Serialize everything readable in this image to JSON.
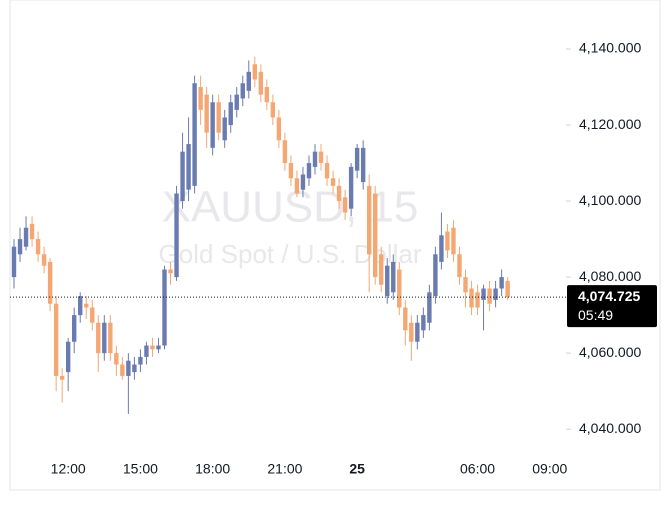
{
  "chart_data": {
    "type": "candlestick",
    "watermark_symbol": "XAUUSD, 15",
    "watermark_name": "Gold Spot / U.S. Dollar",
    "up_color": "#6a7bb0",
    "down_color": "#f4a772",
    "ylim": [
      4033.2,
      4152.9
    ],
    "yticks": [
      {
        "value": 4040,
        "label": "4,040.000"
      },
      {
        "value": 4060,
        "label": "4,060.000"
      },
      {
        "value": 4080,
        "label": "4,080.000"
      },
      {
        "value": 4100,
        "label": "4,100.000"
      },
      {
        "value": 4120,
        "label": "4,120.000"
      },
      {
        "value": 4140,
        "label": "4,140.000"
      }
    ],
    "last_price": {
      "value": 4074.725,
      "label": "4,074.725"
    },
    "countdown": "05:49",
    "categories": [
      null,
      null,
      null,
      null,
      null,
      null,
      null,
      null,
      null,
      "12:00",
      null,
      null,
      null,
      null,
      null,
      null,
      null,
      null,
      null,
      null,
      null,
      "15:00",
      null,
      null,
      null,
      null,
      null,
      null,
      null,
      null,
      null,
      null,
      null,
      "18:00",
      null,
      null,
      null,
      null,
      null,
      null,
      null,
      null,
      null,
      null,
      null,
      "21:00",
      null,
      null,
      null,
      null,
      null,
      null,
      null,
      null,
      null,
      null,
      null,
      "25",
      null,
      null,
      null,
      null,
      null,
      null,
      null,
      null,
      null,
      null,
      null,
      null,
      null,
      null,
      null,
      null,
      null,
      null,
      null,
      "06:00",
      null,
      null,
      null,
      null,
      null,
      null,
      null,
      null,
      null,
      null,
      null,
      "09:00"
    ],
    "open": [
      4080,
      4086,
      4088,
      4094,
      4090,
      4086,
      4084,
      4073,
      4054,
      4055,
      4063,
      4070,
      4073,
      4072,
      4068,
      4060,
      4068,
      4060,
      4057,
      4054,
      4055,
      4057,
      4059,
      4062,
      4061,
      4062,
      4082,
      4080,
      4100,
      4103,
      4104,
      4130,
      4128,
      4114,
      4126,
      4116,
      4120,
      4124,
      4127,
      4129,
      4136,
      4134,
      4130,
      4126,
      4122,
      4116,
      4110,
      4106,
      4103,
      4106,
      4109,
      4113,
      4110,
      4106,
      4104,
      4101,
      4098,
      4108,
      4105,
      4104,
      4102,
      4086,
      4075,
      4076,
      4082,
      4072,
      4068,
      4063,
      4066,
      4068,
      4075,
      4084,
      4092,
      4093,
      4086,
      4080,
      4077,
      4076,
      4074,
      4077,
      4074,
      4077,
      4079,
      null,
      null,
      null,
      null,
      null,
      null,
      null
    ],
    "high": [
      4090,
      4093,
      4096,
      4096,
      4092,
      4088,
      4085,
      4075,
      4056,
      4064,
      4072,
      4076,
      4075,
      4074,
      4070,
      4070,
      4070,
      4062,
      4059,
      4060,
      4059,
      4061,
      4063,
      4064,
      4064,
      4083,
      4084,
      4104,
      4118,
      4122,
      4133,
      4133,
      4130,
      4128,
      4128,
      4124,
      4128,
      4130,
      4133,
      4137,
      4138,
      4136,
      4132,
      4128,
      4124,
      4118,
      4112,
      4108,
      4109,
      4112,
      4115,
      4115,
      4112,
      4108,
      4106,
      4103,
      4110,
      4115,
      4116,
      4107,
      4104,
      4088,
      4085,
      4086,
      4084,
      4074,
      4070,
      4070,
      4072,
      4078,
      4088,
      4097,
      4094,
      4095,
      4088,
      4082,
      4079,
      4078,
      4078,
      4079,
      4079,
      4082,
      4080,
      null,
      null,
      null,
      null,
      null,
      null,
      null
    ],
    "low": [
      4077,
      4084,
      4087,
      4088,
      4084,
      4081,
      4071,
      4050,
      4047,
      4050,
      4060,
      4068,
      4069,
      4066,
      4055,
      4058,
      4058,
      4054,
      4053,
      4044,
      4053,
      4055,
      4057,
      4059,
      4060,
      4061,
      4078,
      4079,
      4098,
      4100,
      4102,
      4120,
      4114,
      4112,
      4116,
      4114,
      4118,
      4122,
      4125,
      4127,
      4130,
      4126,
      4124,
      4120,
      4114,
      4108,
      4104,
      4101,
      4101,
      4104,
      4107,
      4108,
      4104,
      4102,
      4098,
      4095,
      4096,
      4106,
      4103,
      4076,
      4078,
      4076,
      4073,
      4074,
      4070,
      4062,
      4058,
      4061,
      4064,
      4066,
      4073,
      4082,
      4085,
      4084,
      4078,
      4072,
      4070,
      4070,
      4066,
      4071,
      4072,
      4075,
      4074,
      null,
      null,
      null,
      null,
      null,
      null,
      null
    ],
    "close": [
      4088,
      4090,
      4093,
      4090,
      4086,
      4083,
      4073,
      4054,
      4053,
      4063,
      4070,
      4075,
      4072,
      4068,
      4060,
      4068,
      4060,
      4057,
      4054,
      4058,
      4057,
      4059,
      4062,
      4061,
      4062,
      4082,
      4081,
      4102,
      4113,
      4115,
      4131,
      4124,
      4118,
      4126,
      4118,
      4122,
      4126,
      4128,
      4131,
      4134,
      4132,
      4128,
      4126,
      4122,
      4116,
      4110,
      4106,
      4102,
      4107,
      4110,
      4113,
      4110,
      4106,
      4104,
      4100,
      4097,
      4109,
      4114,
      4114,
      4086,
      4080,
      4078,
      4083,
      4084,
      4072,
      4066,
      4063,
      4068,
      4070,
      4076,
      4086,
      4091,
      4087,
      4086,
      4080,
      4076,
      4072,
      4072,
      4077,
      4073,
      4077,
      4080,
      4074.725,
      null,
      null,
      null,
      null,
      null,
      null,
      null
    ]
  }
}
